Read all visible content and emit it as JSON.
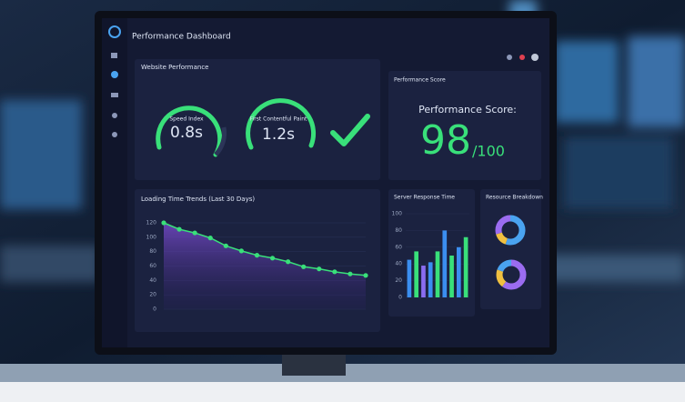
{
  "header": {
    "title": "Performance Dashboard"
  },
  "website_performance": {
    "title": "Website Performance",
    "metrics": [
      {
        "label": "Speed Index",
        "value": "0.8s"
      },
      {
        "label": "First Contentful Paint",
        "value": "1.2s"
      }
    ]
  },
  "performance_score": {
    "panel_title": "Performance Score",
    "heading": "Performance Score:",
    "score": 98,
    "max": "/100"
  },
  "loading_trend": {
    "type": "line",
    "title": "Loading Time Trends (Last 30 Days)",
    "values": [
      120,
      111,
      106,
      99,
      88,
      81,
      75,
      71,
      66,
      59,
      56,
      52,
      49,
      47
    ],
    "color": "#39e07a",
    "ylim": [
      0,
      120
    ],
    "yticks": [
      0,
      20,
      40,
      60,
      80,
      100,
      120
    ]
  },
  "server_response": {
    "type": "bar",
    "title": "Server Response Time",
    "values": [
      45,
      55,
      38,
      42,
      55,
      80,
      50,
      60,
      72
    ],
    "colors": [
      "#3b8ef0",
      "#39e07a",
      "#8a6cf0",
      "#3b8ef0",
      "#39e07a",
      "#3b8ef0",
      "#39e07a",
      "#3b8ef0",
      "#39e07a"
    ],
    "ylim": [
      0,
      100
    ],
    "yticks": [
      0,
      20,
      40,
      60,
      80,
      100
    ]
  },
  "resource_breakdown": {
    "title": "Resource Breakdown",
    "donuts": [
      {
        "values": [
          55,
          15,
          30
        ],
        "colors": [
          "#4aa3f0",
          "#f0c040",
          "#9b6cf0"
        ]
      },
      {
        "values": [
          60,
          20,
          20
        ],
        "colors": [
          "#9b6cf0",
          "#f0c040",
          "#4aa3f0"
        ]
      }
    ]
  }
}
